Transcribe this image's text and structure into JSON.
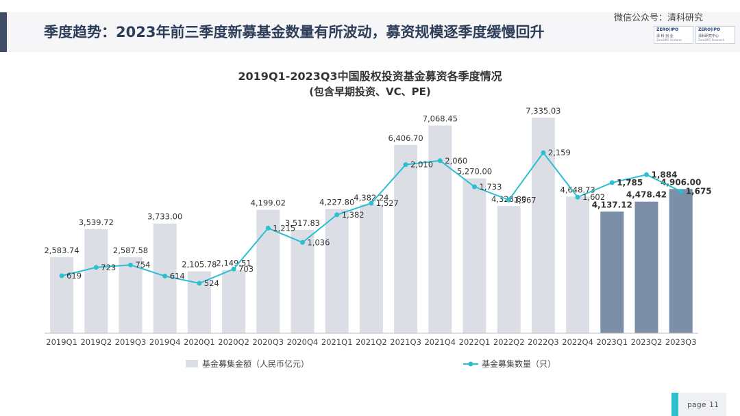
{
  "header": {
    "title": "季度趋势：2023年前三季度新募基金数量有所波动，募资规模逐季度缓慢回升",
    "watermark": "微信公众号：清科研究",
    "logos": [
      {
        "top": "ZERO|IPO",
        "brand": "清 科 创 业",
        "sub": "Zero2IPO Ventures"
      },
      {
        "top": "ZERO|IPO",
        "brand": "清科研究中心",
        "sub": "Zero2IPO Research"
      }
    ]
  },
  "chart_data": {
    "type": "bar",
    "title": "2019Q1-2023Q3中国股权投资基金募资各季度情况",
    "subtitle": "(包含早期投资、VC、PE)",
    "categories": [
      "2019Q1",
      "2019Q2",
      "2019Q3",
      "2019Q4",
      "2020Q1",
      "2020Q2",
      "2020Q3",
      "2020Q4",
      "2021Q1",
      "2021Q2",
      "2021Q3",
      "2021Q4",
      "2022Q1",
      "2022Q2",
      "2022Q3",
      "2022Q4",
      "2023Q1",
      "2023Q2",
      "2023Q3"
    ],
    "series": [
      {
        "name": "基金募集金额（人民币亿元）",
        "type": "bar",
        "values": [
          2583.74,
          3539.72,
          2587.58,
          3733.0,
          2105.78,
          2149.51,
          4199.02,
          3517.83,
          4227.8,
          4382.24,
          6406.7,
          7068.45,
          5270.0,
          4328.8,
          7335.03,
          4648.73,
          4137.12,
          4478.42,
          4906.0
        ],
        "labels": [
          "2,583.74",
          "3,539.72",
          "2,587.58",
          "3,733.00",
          "2,105.78",
          "2,149.51",
          "4,199.02",
          "3,517.83",
          "4,227.80",
          "4,382.24",
          "6,406.70",
          "7,068.45",
          "5,270.00",
          "4,328.80",
          "7,335.03",
          "4,648.73",
          "4,137.12",
          "4,478.42",
          "4,906.00"
        ],
        "color": "#dcdee6",
        "highlight_color": "#7c8fa8"
      },
      {
        "name": "基金募集数量（只）",
        "type": "line",
        "values": [
          619,
          723,
          754,
          614,
          524,
          703,
          1215,
          1036,
          1382,
          1527,
          2010,
          2060,
          1733,
          1567,
          2159,
          1602,
          1785,
          1884,
          1675
        ],
        "labels": [
          "619",
          "723",
          "754",
          "614",
          "524",
          "703",
          "1,215",
          "1,036",
          "1,382",
          "1,527",
          "2,010",
          "2,060",
          "1,733",
          "1,567",
          "2,159",
          "1,602",
          "1,785",
          "1,884",
          "1,675"
        ],
        "color": "#2bbfd0"
      }
    ],
    "highlight_categories": [
      "2023Q1",
      "2023Q2",
      "2023Q3"
    ],
    "legend_position": "bottom",
    "grid": false
  },
  "footer": {
    "page_label": "page",
    "page_number": "11"
  }
}
